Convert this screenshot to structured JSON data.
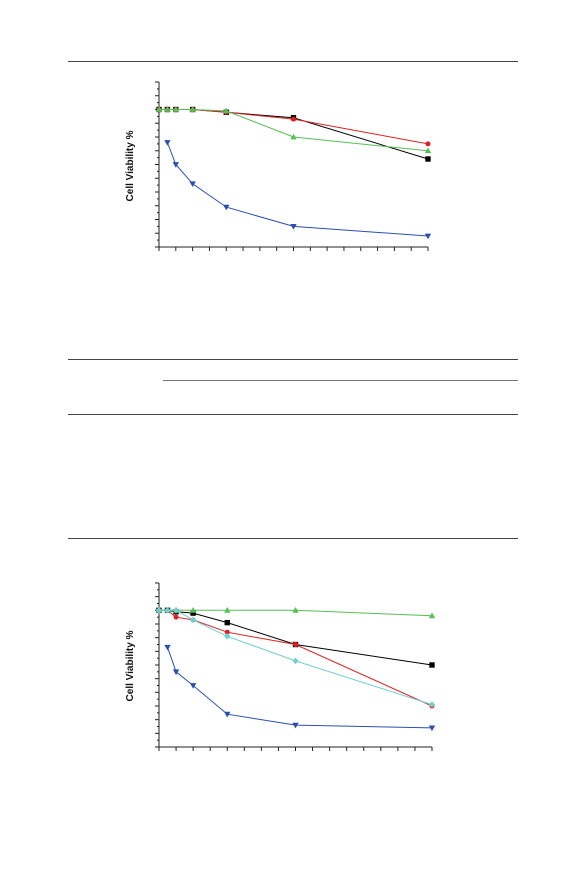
{
  "chart_data": [
    {
      "type": "line",
      "title": "",
      "xlabel": "",
      "ylabel": "Cell Viability %",
      "x": [
        0,
        1,
        2,
        4,
        8,
        16,
        32
      ],
      "xlim": [
        0,
        32
      ],
      "ylim": [
        0,
        120
      ],
      "grid": false,
      "legend": "none",
      "series": [
        {
          "color": "#000000",
          "marker": "square",
          "values": [
            100,
            100,
            100,
            100,
            98,
            94,
            64
          ]
        },
        {
          "color": "#e02020",
          "marker": "circle",
          "values": [
            100,
            100,
            100,
            100,
            98,
            93,
            75
          ]
        },
        {
          "color": "#55c055",
          "marker": "triangle-up",
          "values": [
            100,
            100,
            100,
            100,
            99,
            80,
            70
          ]
        },
        {
          "color": "#2a4fb0",
          "marker": "triangle-down",
          "x": [
            1,
            2,
            4,
            8,
            16,
            32
          ],
          "values": [
            76,
            60,
            46,
            29,
            15,
            8
          ]
        }
      ]
    },
    {
      "type": "line",
      "title": "",
      "xlabel": "",
      "ylabel": "Cell Viability %",
      "x": [
        0,
        1,
        2,
        4,
        8,
        16,
        32
      ],
      "xlim": [
        0,
        32
      ],
      "ylim": [
        0,
        120
      ],
      "grid": false,
      "legend": "none",
      "series": [
        {
          "color": "#000000",
          "marker": "square",
          "values": [
            100,
            100,
            99,
            98,
            91,
            75,
            60
          ]
        },
        {
          "color": "#e02020",
          "marker": "circle",
          "values": [
            100,
            100,
            95,
            93,
            84,
            75,
            30
          ]
        },
        {
          "color": "#55c055",
          "marker": "triangle-up",
          "values": [
            100,
            100,
            100,
            100,
            100,
            100,
            96
          ]
        },
        {
          "color": "#6fd0d0",
          "marker": "diamond",
          "values": [
            100,
            100,
            100,
            93,
            81,
            63,
            31
          ]
        },
        {
          "color": "#2a4fb0",
          "marker": "triangle-down",
          "x": [
            1,
            2,
            4,
            8,
            16,
            32
          ],
          "values": [
            73,
            55,
            45,
            24,
            16,
            14
          ]
        }
      ]
    }
  ]
}
